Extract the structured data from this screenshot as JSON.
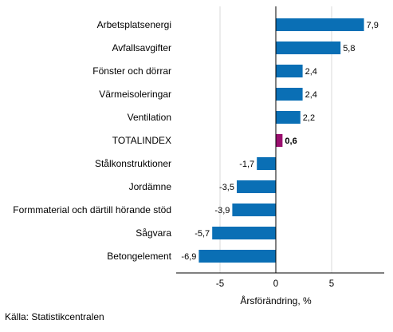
{
  "chart_data": {
    "type": "bar",
    "orientation": "horizontal",
    "categories": [
      "Arbetsplatsenergi",
      "Avfallsavgifter",
      "Fönster och dörrar",
      "Värmeisoleringar",
      "Ventilation",
      "TOTALINDEX",
      "Stålkonstruktioner",
      "Jordämne",
      "Formmaterial och därtill hörande stöd",
      "Sågvara",
      "Betongelement"
    ],
    "values": [
      7.9,
      5.8,
      2.4,
      2.4,
      2.2,
      0.6,
      -1.7,
      -3.5,
      -3.9,
      -5.7,
      -6.9
    ],
    "value_labels": [
      "7,9",
      "5,8",
      "2,4",
      "2,4",
      "2,2",
      "0,6",
      "-1,7",
      "-3,5",
      "-3,9",
      "-5,7",
      "-6,9"
    ],
    "highlight_category": "TOTALINDEX",
    "xlabel": "Årsförändring, %",
    "xticks": [
      -5,
      0,
      5
    ],
    "xtick_labels": [
      "-5",
      "0",
      "5"
    ],
    "xlim": [
      -9,
      10
    ],
    "grid": true,
    "colors": {
      "bar": "#0a6fb5",
      "highlight": "#9a0f6e",
      "grid": "#d9d9d9",
      "axis": "#000000"
    }
  },
  "source": "Källa: Statistikcentralen"
}
